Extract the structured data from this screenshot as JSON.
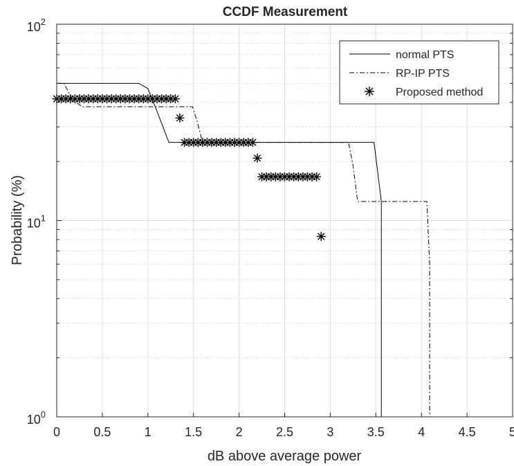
{
  "chart_data": {
    "type": "line",
    "title": "CCDF Measurement",
    "xlabel": "dB above average power",
    "ylabel": "Probability (%)",
    "xlim": [
      0,
      5
    ],
    "ylim": [
      1,
      100
    ],
    "yscale": "log",
    "grid": true,
    "legend_position": "top-right",
    "x_ticks": [
      "0",
      "0.5",
      "1",
      "1.5",
      "2",
      "2.5",
      "3",
      "3.5",
      "4",
      "4.5",
      "5"
    ],
    "y_ticks": [
      {
        "base": "10",
        "exp": "0"
      },
      {
        "base": "10",
        "exp": "1"
      },
      {
        "base": "10",
        "exp": "2"
      }
    ],
    "series": [
      {
        "name": "normal PTS",
        "style": "solid",
        "x": [
          0,
          0.9,
          1.0,
          1.1,
          1.23,
          1.4,
          1.6,
          1.8,
          2.0,
          2.4,
          2.8,
          3.2,
          3.48,
          3.56,
          3.56
        ],
        "y": [
          50,
          50,
          47,
          36,
          25,
          25,
          25,
          25,
          25,
          25,
          25,
          25,
          25,
          12.5,
          1
        ]
      },
      {
        "name": "RP-IP PTS",
        "style": "dashdot",
        "x": [
          0,
          0.08,
          0.14,
          0.18,
          0.28,
          0.6,
          1.0,
          1.2,
          1.49,
          1.54,
          1.6,
          2.0,
          2.5,
          3.2,
          3.25,
          3.3,
          3.6,
          4.0,
          4.06,
          4.09,
          4.09
        ],
        "y": [
          50,
          50,
          44,
          41,
          38,
          38,
          38,
          38,
          38,
          32,
          25,
          25,
          25,
          25,
          19,
          12.5,
          12.5,
          12.5,
          12.5,
          6,
          1
        ]
      },
      {
        "name": "Proposed method",
        "style": "marker",
        "x": [
          0.0,
          0.05,
          0.1,
          0.15,
          0.2,
          0.25,
          0.3,
          0.35,
          0.4,
          0.45,
          0.5,
          0.55,
          0.6,
          0.65,
          0.7,
          0.75,
          0.8,
          0.85,
          0.9,
          0.95,
          1.0,
          1.05,
          1.1,
          1.15,
          1.2,
          1.25,
          1.3,
          1.35,
          1.4,
          1.45,
          1.5,
          1.55,
          1.6,
          1.65,
          1.7,
          1.75,
          1.8,
          1.85,
          1.9,
          1.95,
          2.0,
          2.05,
          2.1,
          2.15,
          2.2,
          2.25,
          2.3,
          2.35,
          2.4,
          2.45,
          2.5,
          2.55,
          2.6,
          2.65,
          2.7,
          2.75,
          2.8,
          2.85,
          2.9
        ],
        "y": [
          41.7,
          41.7,
          41.7,
          41.7,
          41.7,
          41.7,
          41.7,
          41.7,
          41.7,
          41.7,
          41.7,
          41.7,
          41.7,
          41.7,
          41.7,
          41.7,
          41.7,
          41.7,
          41.7,
          41.7,
          41.7,
          41.7,
          41.7,
          41.7,
          41.7,
          41.7,
          41.7,
          33.3,
          25,
          25,
          25,
          25,
          25,
          25,
          25,
          25,
          25,
          25,
          25,
          25,
          25,
          25,
          25,
          25,
          20.8,
          16.7,
          16.7,
          16.7,
          16.7,
          16.7,
          16.7,
          16.7,
          16.7,
          16.7,
          16.7,
          16.7,
          16.7,
          16.7,
          8.3
        ]
      }
    ]
  }
}
